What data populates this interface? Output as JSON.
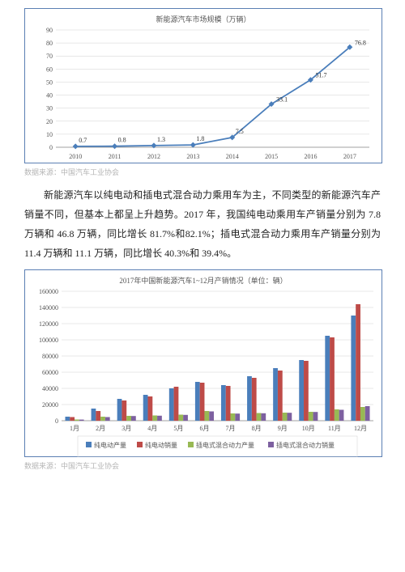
{
  "chart1": {
    "type": "line",
    "title": "新能源汽车市场规模（万辆）",
    "categories": [
      "2010",
      "2011",
      "2012",
      "2013",
      "2014",
      "2015",
      "2016",
      "2017"
    ],
    "values": [
      0.7,
      0.8,
      1.3,
      1.8,
      7.5,
      33.1,
      51.7,
      76.8
    ],
    "ylim": [
      0,
      90
    ],
    "ytick_step": 10,
    "line_color": "#4a7ebb",
    "marker_color": "#4a7ebb",
    "marker_shape": "diamond",
    "grid_color": "#d0d0d0",
    "background": "#ffffff",
    "title_fontsize": 9,
    "label_fontsize": 8,
    "border_color": "#5b7fb3"
  },
  "source1": "数据来源：中国汽车工业协会",
  "para1": "新能源汽车以纯电动和插电式混合动力乘用车为主，不同类型的新能源汽车产销量不同，但基本上都呈上升趋势。2017 年，我国纯电动乘用车产销量分别为 7.8 万辆和 46.8 万辆，同比增长 81.7%和82.1%；插电式混合动力乘用车产销量分别为 11.4 万辆和 11.1 万辆，同比增长 40.3%和 39.4%。",
  "chart2": {
    "type": "bar",
    "title": "2017年中国新能源汽车1~12月产销情况（单位：辆）",
    "categories": [
      "1月",
      "2月",
      "3月",
      "4月",
      "5月",
      "6月",
      "7月",
      "8月",
      "9月",
      "10月",
      "11月",
      "12月"
    ],
    "series": [
      {
        "name": "纯电动产量",
        "color": "#4a7ebb",
        "values": [
          5000,
          15000,
          27000,
          32000,
          40000,
          48000,
          44000,
          55000,
          65000,
          75000,
          105000,
          130000
        ]
      },
      {
        "name": "纯电动销量",
        "color": "#be4b48",
        "values": [
          4500,
          12000,
          25000,
          30000,
          42000,
          47000,
          43000,
          53000,
          62000,
          74000,
          103000,
          144000
        ]
      },
      {
        "name": "插电式混合动力产量",
        "color": "#98b954",
        "values": [
          1500,
          5000,
          6000,
          6500,
          7500,
          12000,
          9000,
          9500,
          10000,
          11000,
          14000,
          17000
        ]
      },
      {
        "name": "插电式混合动力销量",
        "color": "#7d60a0",
        "values": [
          1400,
          4500,
          5800,
          6200,
          7200,
          11500,
          8800,
          9200,
          9800,
          10800,
          13500,
          18000
        ]
      }
    ],
    "ylim": [
      0,
      160000
    ],
    "ytick_step": 20000,
    "grid_color": "#d0d0d0",
    "background": "#ffffff",
    "title_fontsize": 9,
    "label_fontsize": 8,
    "border_color": "#5b7fb3"
  },
  "source2": "数据来源：中国汽车工业协会"
}
